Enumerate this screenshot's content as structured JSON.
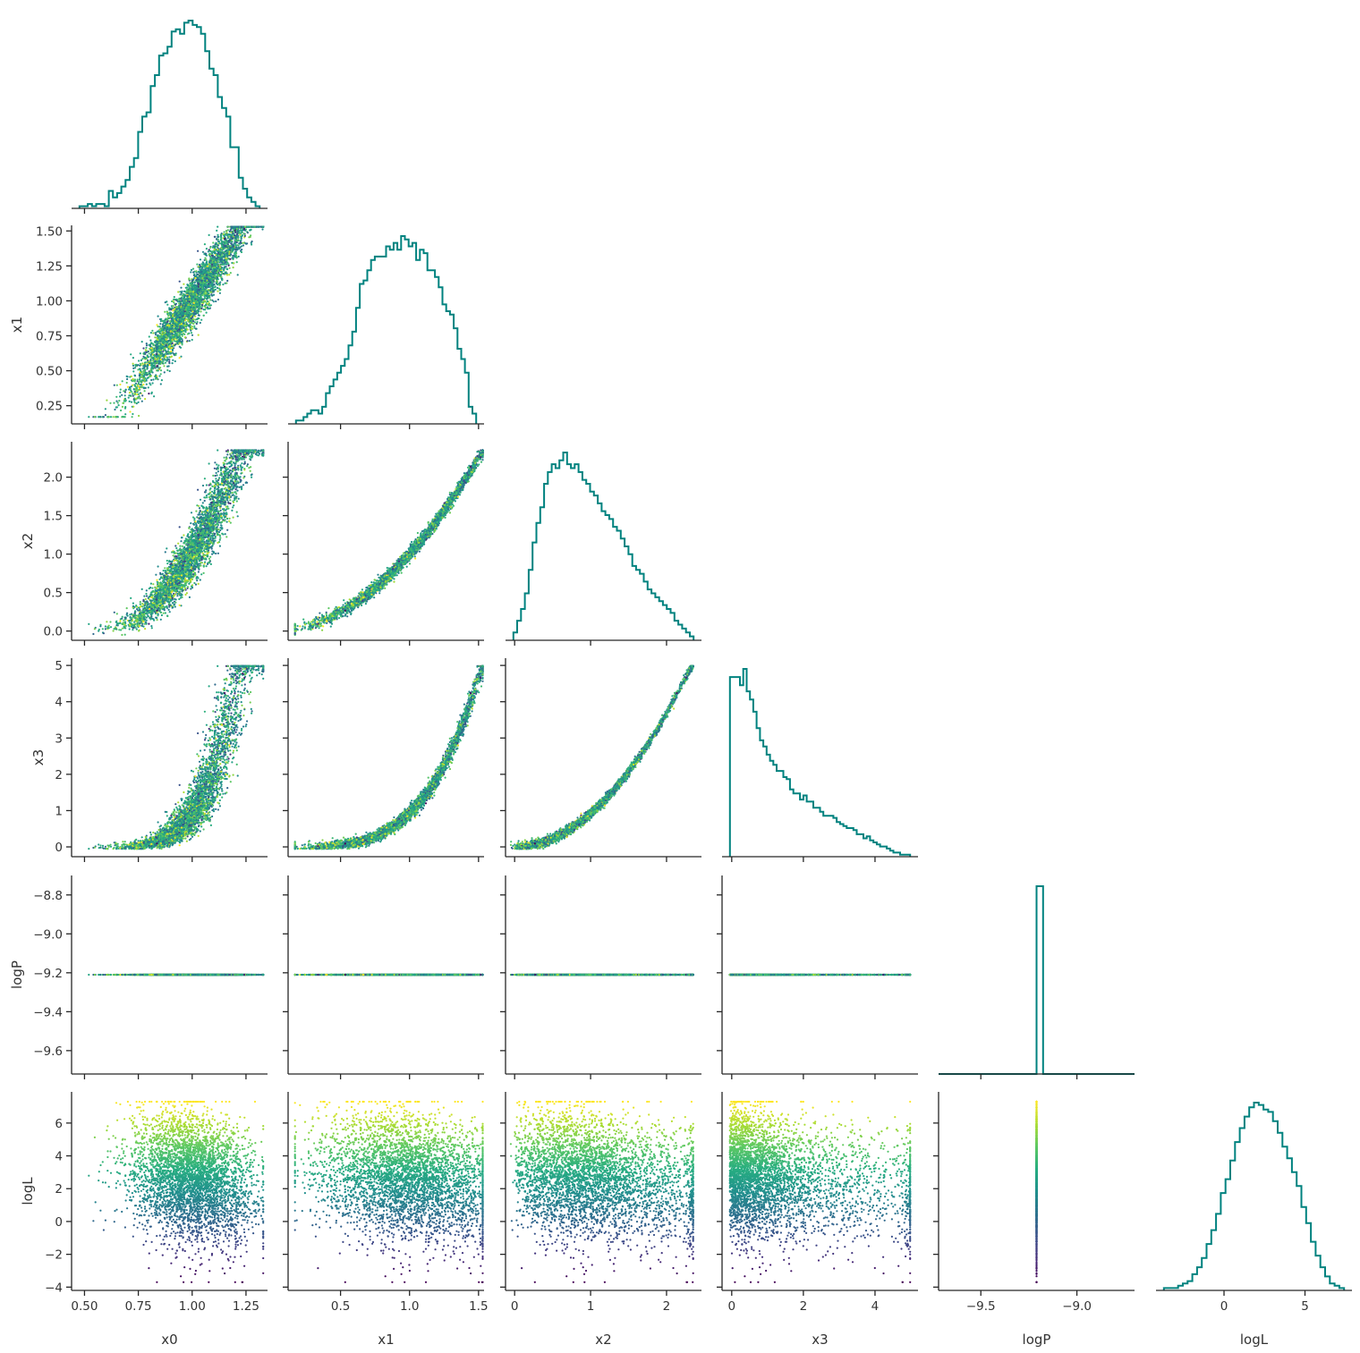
{
  "chart_data": {
    "type": "scatter",
    "variables": [
      "x0",
      "x1",
      "x2",
      "x3",
      "logP",
      "logL"
    ],
    "axis_labels": {
      "x0": "x0",
      "x1": "x1",
      "x2": "x2",
      "x3": "x3",
      "logP": "logP",
      "logL": "logL"
    },
    "ranges": {
      "x0": [
        0.44,
        1.35
      ],
      "x1": [
        0.12,
        1.54
      ],
      "x2": [
        -0.12,
        2.46
      ],
      "x3": [
        -0.27,
        5.2
      ],
      "logP": [
        -9.72,
        -8.7
      ],
      "logL": [
        -4.2,
        7.9
      ]
    },
    "ticks": {
      "x0": [
        0.5,
        0.75,
        1.0,
        1.25
      ],
      "x1": [
        0.5,
        1.0,
        1.5
      ],
      "x2": [
        0,
        1,
        2
      ],
      "x3": [
        0,
        2,
        4
      ],
      "logP": [
        -9.5,
        -9.0
      ],
      "logL": [
        0,
        5
      ]
    },
    "y_ticks": {
      "x1": [
        0.25,
        0.5,
        0.75,
        1.0,
        1.25,
        1.5
      ],
      "x2": [
        0.0,
        0.5,
        1.0,
        1.5,
        2.0
      ],
      "x3": [
        0,
        1,
        2,
        3,
        4,
        5
      ],
      "logP": [
        -9.6,
        -9.4,
        -9.2,
        -9.0,
        -8.8
      ],
      "logL": [
        -4,
        -2,
        0,
        2,
        4,
        6
      ]
    },
    "tick_text": {
      "x0": [
        "0.50",
        "0.75",
        "1.00",
        "1.25"
      ],
      "x1": [
        "0.5",
        "1.0",
        "1.5"
      ],
      "x2": [
        "0",
        "1",
        "2"
      ],
      "x3": [
        "0",
        "2",
        "4"
      ],
      "logP": [
        "−9.5",
        "−9.0"
      ],
      "logL": [
        "0",
        "5"
      ]
    },
    "y_tick_text": {
      "x1": [
        "0.25",
        "0.50",
        "0.75",
        "1.00",
        "1.25",
        "1.50"
      ],
      "x2": [
        "0.0",
        "0.5",
        "1.0",
        "1.5",
        "2.0"
      ],
      "x3": [
        "0",
        "1",
        "2",
        "3",
        "4",
        "5"
      ],
      "logP": [
        "−9.6",
        "−9.4",
        "−9.2",
        "−9.0",
        "−8.8"
      ],
      "logL": [
        "−4",
        "−2",
        "0",
        "2",
        "4",
        "6"
      ]
    },
    "histograms": {
      "x0": [
        1,
        1,
        2,
        1,
        2,
        2,
        1,
        8,
        5,
        7,
        10,
        13,
        19,
        23,
        35,
        42,
        44,
        56,
        61,
        70,
        71,
        74,
        81,
        82,
        80,
        85,
        86,
        84,
        83,
        80,
        72,
        64,
        61,
        51,
        46,
        42,
        28,
        28,
        14,
        9,
        5,
        3,
        1
      ],
      "x1": [
        1,
        1,
        2,
        3,
        4,
        4,
        3,
        5,
        9,
        11,
        13,
        15,
        17,
        19,
        23,
        27,
        34,
        41,
        42,
        45,
        48,
        49,
        49,
        49,
        52,
        51,
        53,
        51,
        55,
        54,
        52,
        53,
        48,
        51,
        50,
        45,
        45,
        43,
        40,
        35,
        33,
        32,
        28,
        22,
        19,
        15,
        5,
        3
      ],
      "x2": [
        2,
        5,
        8,
        12,
        18,
        25,
        30,
        34,
        40,
        43,
        45,
        44,
        46,
        48,
        45,
        44,
        45,
        43,
        41,
        40,
        38,
        37,
        35,
        33,
        32,
        31,
        29,
        28,
        26,
        24,
        22,
        19,
        18,
        17,
        15,
        13,
        12,
        11,
        10,
        9,
        8,
        7,
        5,
        4,
        3,
        2,
        1
      ],
      "x3": [
        88,
        88,
        88,
        84,
        92,
        81,
        77,
        71,
        63,
        57,
        54,
        50,
        47,
        45,
        42,
        42,
        39,
        38,
        33,
        31,
        31,
        28,
        30,
        27,
        27,
        24,
        24,
        22,
        20,
        20,
        20,
        19,
        17,
        16,
        15,
        14,
        14,
        13,
        11,
        11,
        9,
        10,
        8,
        7,
        6,
        5,
        5,
        4,
        3,
        2,
        2,
        1,
        1,
        1
      ],
      "logP": [
        0,
        0,
        0,
        0,
        0,
        0,
        0,
        0,
        0,
        0,
        0,
        0,
        0,
        0,
        0,
        1,
        0,
        0,
        0,
        0,
        0,
        0,
        0,
        0,
        0,
        0,
        0,
        0,
        0,
        0
      ],
      "logL": [
        1,
        1,
        1,
        2,
        3,
        4,
        7,
        10,
        14,
        20,
        26,
        33,
        42,
        48,
        56,
        64,
        70,
        75,
        79,
        81,
        80,
        78,
        77,
        73,
        68,
        62,
        57,
        51,
        45,
        36,
        29,
        21,
        15,
        10,
        6,
        3,
        2,
        1
      ]
    },
    "scatter": {
      "samples": 4000,
      "color_by": "logL",
      "colormap": "viridis",
      "logP_value": -9.21,
      "hist_color": "#00827f"
    }
  }
}
